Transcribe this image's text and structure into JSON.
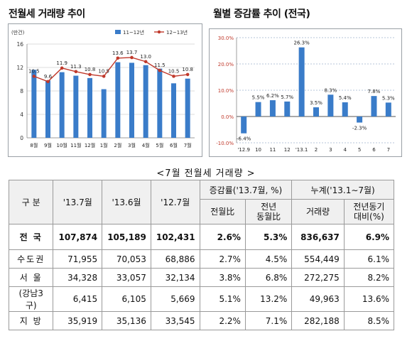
{
  "left_title": "전월세 거래량 추이",
  "right_title": "월별 증감률 추이 (전국)",
  "table_title": "<7월 전월세 거래량 >",
  "chart_data": [
    {
      "type": "bar",
      "title": "전월세 거래량 추이",
      "unit_label": "(만건)",
      "categories": [
        "8월",
        "9월",
        "10월",
        "11월",
        "12월",
        "1월",
        "2월",
        "3월",
        "4월",
        "5월",
        "6월",
        "7월"
      ],
      "ylim": [
        0,
        16
      ],
      "yticks": [
        "0",
        "4",
        "8",
        "12",
        "16"
      ],
      "series": [
        {
          "name": "11~12년",
          "color": "#3a7cc9",
          "values": [
            11.6,
            9.8,
            11.2,
            10.6,
            10.2,
            8.3,
            12.9,
            12.8,
            12.4,
            11.8,
            9.3,
            10.1
          ]
        },
        {
          "name": "12~13년",
          "color": "#c0392b",
          "type": "line",
          "values": [
            10.5,
            9.6,
            11.9,
            11.3,
            10.8,
            10.5,
            13.6,
            13.7,
            13.0,
            11.5,
            10.5,
            10.8
          ],
          "labels": [
            "10.5",
            "9.6",
            "11.9",
            "11.3",
            "10.8",
            "10.5",
            "13.6",
            "13.7",
            "13.0",
            "11.5",
            "10.5",
            "10.8"
          ]
        }
      ],
      "grid": true
    },
    {
      "type": "bar",
      "title": "월별 증감률 추이 (전국)",
      "categories": [
        "'12.9",
        "10",
        "11",
        "12",
        "'13.1",
        "2",
        "3",
        "4",
        "5",
        "6",
        "7"
      ],
      "values": [
        -6.4,
        5.5,
        6.2,
        5.7,
        26.3,
        3.5,
        8.3,
        5.4,
        -2.3,
        7.8,
        5.3
      ],
      "labels": [
        "-6.4%",
        "5.5%",
        "6.2%",
        "5.7%",
        "26.3%",
        "3.5%",
        "8.3%",
        "5.4%",
        "-2.3%",
        "7.8%",
        "5.3%"
      ],
      "ylim": [
        -10,
        30
      ],
      "yticks": [
        "-10.0%",
        "0.0%",
        "10.0%",
        "20.0%",
        "30.0%"
      ],
      "color": "#3a7cc9",
      "grid": true
    },
    {
      "type": "table",
      "title": "<7월 전월세 거래량 >",
      "header": {
        "col_region": "구 분",
        "col_1": "'13.7월",
        "col_2": "'13.6월",
        "col_3": "'12.7월",
        "group_change": "증감률('13.7월, %)",
        "change_mom": "전월比",
        "change_yoy": "전년\n동월比",
        "group_cum": "누계('13.1∼7월)",
        "cum_volume": "거래량",
        "cum_yoy": "전년동기\n대비(%)"
      },
      "rows": [
        {
          "region": "전 국",
          "v1": "107,874",
          "v2": "105,189",
          "v3": "102,431",
          "mom": "2.6%",
          "yoy": "5.3%",
          "cum": "836,637",
          "cumyoy": "6.9%"
        },
        {
          "region": "수도권",
          "v1": "71,955",
          "v2": "70,053",
          "v3": "68,886",
          "mom": "2.7%",
          "yoy": "4.5%",
          "cum": "554,449",
          "cumyoy": "6.1%"
        },
        {
          "region": "서 울",
          "v1": "34,328",
          "v2": "33,057",
          "v3": "32,134",
          "mom": "3.8%",
          "yoy": "6.8%",
          "cum": "272,275",
          "cumyoy": "8.2%"
        },
        {
          "region": "(강남3구)",
          "v1": "6,415",
          "v2": "6,105",
          "v3": "5,669",
          "mom": "5.1%",
          "yoy": "13.2%",
          "cum": "49,963",
          "cumyoy": "13.6%"
        },
        {
          "region": "지 방",
          "v1": "35,919",
          "v2": "35,136",
          "v3": "33,545",
          "mom": "2.2%",
          "yoy": "7.1%",
          "cum": "282,188",
          "cumyoy": "8.5%"
        }
      ]
    }
  ]
}
